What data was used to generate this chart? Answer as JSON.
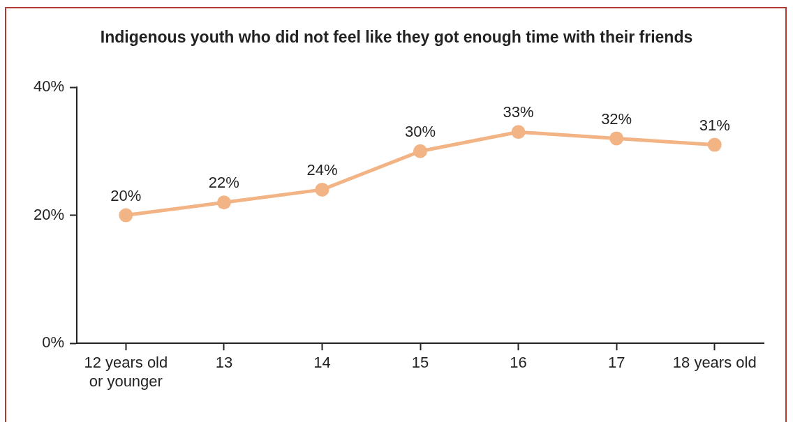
{
  "chart_data": {
    "type": "line",
    "title": "Indigenous youth who did not feel like they got enough time with their friends",
    "categories": [
      "12 years old or younger",
      "13",
      "14",
      "15",
      "16",
      "17",
      "18 years old"
    ],
    "series": [
      {
        "color": "#f2b385",
        "values": [
          20,
          22,
          24,
          30,
          33,
          32,
          31
        ],
        "value_labels": [
          "20%",
          "22%",
          "24%",
          "30%",
          "33%",
          "32%",
          "31%"
        ]
      }
    ],
    "ylim": [
      0,
      40
    ],
    "yticks": [
      {
        "value": 0,
        "label": "0%"
      },
      {
        "value": 20,
        "label": "20%"
      },
      {
        "value": 40,
        "label": "40%"
      }
    ],
    "grid": false,
    "legend": false,
    "marker": "circle",
    "line_style": "solid"
  }
}
